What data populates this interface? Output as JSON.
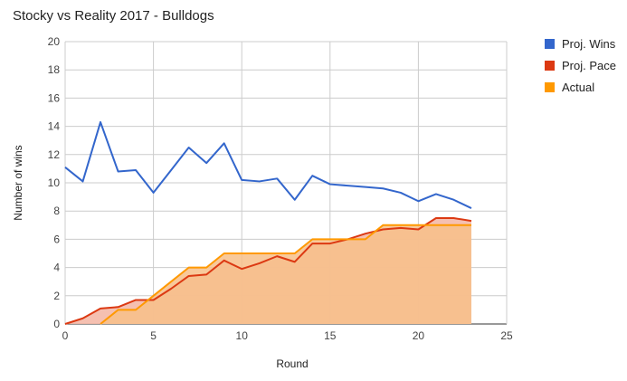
{
  "chart_data": {
    "type": "area",
    "title": "Stocky vs Reality 2017 - Bulldogs",
    "xlabel": "Round",
    "ylabel": "Number of wins",
    "xlim": [
      0,
      25
    ],
    "ylim": [
      0,
      20
    ],
    "x_ticks": [
      "0",
      "5",
      "10",
      "15",
      "20",
      "25"
    ],
    "y_ticks": [
      "0",
      "2",
      "4",
      "6",
      "8",
      "10",
      "12",
      "14",
      "16",
      "18",
      "20"
    ],
    "grid": true,
    "legend_position": "right",
    "series": [
      {
        "name": "Proj. Wins",
        "style": "line",
        "color": "#3366cc",
        "x": [
          0,
          1,
          2,
          3,
          4,
          5,
          6,
          7,
          8,
          9,
          10,
          11,
          12,
          13,
          14,
          15,
          16,
          17,
          18,
          19,
          20,
          21,
          22,
          23
        ],
        "values": [
          11.1,
          10.1,
          14.3,
          10.8,
          10.9,
          9.3,
          10.9,
          12.5,
          11.4,
          12.8,
          10.2,
          10.1,
          10.3,
          8.8,
          10.5,
          9.9,
          9.8,
          9.7,
          9.6,
          9.3,
          8.7,
          9.2,
          8.8,
          8.2
        ]
      },
      {
        "name": "Proj. Pace",
        "style": "area",
        "color": "#dc3912",
        "fill": "#f4b9a8",
        "x": [
          0,
          1,
          2,
          3,
          4,
          5,
          6,
          7,
          8,
          9,
          10,
          11,
          12,
          13,
          14,
          15,
          16,
          17,
          18,
          19,
          20,
          21,
          22,
          23
        ],
        "values": [
          0,
          0.4,
          1.1,
          1.2,
          1.7,
          1.7,
          2.5,
          3.4,
          3.5,
          4.5,
          3.9,
          4.3,
          4.8,
          4.4,
          5.7,
          5.7,
          6.0,
          6.4,
          6.7,
          6.8,
          6.7,
          7.5,
          7.5,
          7.3
        ]
      },
      {
        "name": "Actual",
        "style": "area",
        "color": "#ff9900",
        "fill": "#f7bf8a",
        "x": [
          2,
          3,
          4,
          5,
          6,
          7,
          8,
          9,
          10,
          11,
          12,
          13,
          14,
          15,
          16,
          17,
          18,
          19,
          20,
          21,
          22,
          23
        ],
        "values": [
          0,
          1,
          1,
          2,
          3,
          4,
          4,
          5,
          5,
          5,
          5,
          5,
          6,
          6,
          6,
          6,
          7,
          7,
          7,
          7,
          7,
          7
        ]
      }
    ]
  }
}
